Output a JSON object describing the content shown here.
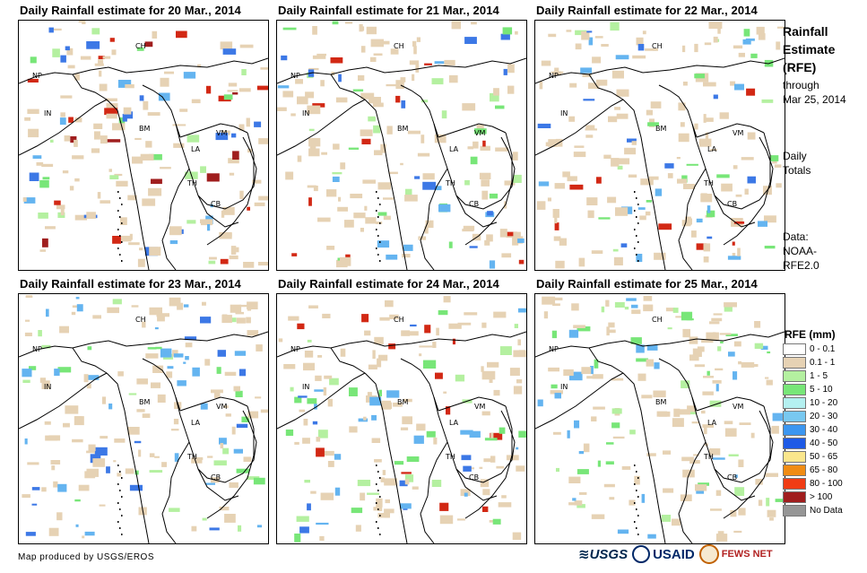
{
  "panels": [
    {
      "title": "Daily Rainfall estimate for 20 Mar., 2014",
      "palette": [
        "#e6d2b4",
        "#b4f0a0",
        "#78e678",
        "#64b4f0",
        "#3c78e6",
        "#d22814",
        "#a01e1e"
      ]
    },
    {
      "title": "Daily Rainfall estimate for 21 Mar., 2014",
      "palette": [
        "#e6d2b4",
        "#b4f0a0",
        "#78e678",
        "#64b4f0",
        "#3c78e6",
        "#d22814"
      ]
    },
    {
      "title": "Daily Rainfall estimate for 22 Mar., 2014",
      "palette": [
        "#e6d2b4",
        "#b4f0a0",
        "#78e678",
        "#64b4f0",
        "#3c78e6",
        "#d22814"
      ]
    },
    {
      "title": "Daily Rainfall estimate for 23 Mar., 2014",
      "palette": [
        "#e6d2b4",
        "#b4f0a0",
        "#78e678",
        "#64b4f0",
        "#3c78e6"
      ]
    },
    {
      "title": "Daily Rainfall estimate for 24 Mar., 2014",
      "palette": [
        "#e6d2b4",
        "#b4f0a0",
        "#78e678",
        "#64b4f0",
        "#3c78e6",
        "#d22814"
      ]
    },
    {
      "title": "Daily Rainfall estimate for 25 Mar., 2014",
      "palette": [
        "#e6d2b4",
        "#b4f0a0",
        "#78e678",
        "#64b4f0"
      ]
    }
  ],
  "country_labels": [
    "CH",
    "NP",
    "IN",
    "BM",
    "LA",
    "VM",
    "TH",
    "CB"
  ],
  "sidebar": {
    "title_line1": "Rainfall",
    "title_line2": "Estimate",
    "title_line3": "(RFE)",
    "through": "through",
    "date": "Mar 25, 2014",
    "daily": "Daily",
    "totals": "Totals",
    "data_label": "Data:",
    "data_source1": "NOAA-",
    "data_source2": "RFE2.0"
  },
  "legend": {
    "title": "RFE (mm)",
    "items": [
      {
        "label": "0 - 0.1",
        "color": "#ffffff"
      },
      {
        "label": "0.1 - 1",
        "color": "#e6d2b4"
      },
      {
        "label": "1 - 5",
        "color": "#b4f0a0"
      },
      {
        "label": "5 - 10",
        "color": "#78e678"
      },
      {
        "label": "10 - 20",
        "color": "#b4f0f0"
      },
      {
        "label": "20 - 30",
        "color": "#78c8f0"
      },
      {
        "label": "30 - 40",
        "color": "#3c96f0"
      },
      {
        "label": "40 - 50",
        "color": "#1e5ae6"
      },
      {
        "label": "50 - 65",
        "color": "#fae68c"
      },
      {
        "label": "65 - 80",
        "color": "#f08c14"
      },
      {
        "label": "80 - 100",
        "color": "#f03c14"
      },
      {
        "label": "> 100",
        "color": "#a01e1e"
      },
      {
        "label": "No Data",
        "color": "#969696"
      }
    ]
  },
  "footer": {
    "credit": "Map produced by USGS/EROS",
    "usgs": "≋USGS",
    "usaid": "USAID",
    "fews": "FEWS NET"
  }
}
